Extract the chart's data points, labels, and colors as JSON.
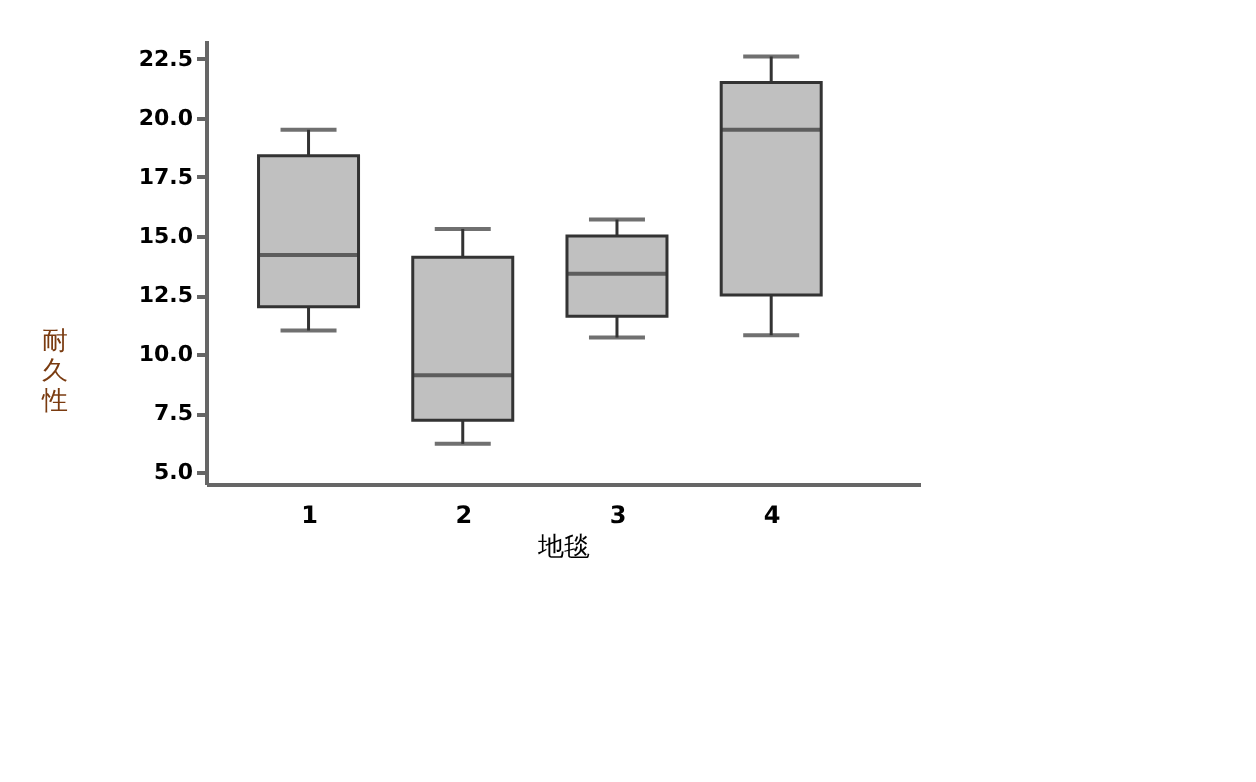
{
  "chart_data": {
    "type": "box",
    "xlabel": "地毯",
    "ylabel": "耐久性",
    "categories": [
      "1",
      "2",
      "3",
      "4"
    ],
    "series": [
      {
        "color": "#c0c0c0",
        "boxes": [
          {
            "low": 11.0,
            "q1": 12.0,
            "median": 14.2,
            "q3": 18.4,
            "high": 19.5
          },
          {
            "low": 6.2,
            "q1": 7.2,
            "median": 9.1,
            "q3": 14.1,
            "high": 15.3
          },
          {
            "low": 10.7,
            "q1": 11.6,
            "median": 13.4,
            "q3": 15.0,
            "high": 15.7
          },
          {
            "low": 10.8,
            "q1": 12.5,
            "median": 19.5,
            "q3": 21.5,
            "high": 22.6
          }
        ]
      }
    ],
    "ylim": [
      4.5,
      23.3
    ],
    "yticks": [
      {
        "value": 5,
        "label": "5.0"
      },
      {
        "value": 7.5,
        "label": "7.5"
      },
      {
        "value": 10,
        "label": "10.0"
      },
      {
        "value": 12.5,
        "label": "12.5"
      },
      {
        "value": 15,
        "label": "15.0"
      },
      {
        "value": 17.5,
        "label": "17.5"
      },
      {
        "value": 20,
        "label": "20.0"
      },
      {
        "value": 22.5,
        "label": "22.5"
      }
    ],
    "grid": false
  }
}
